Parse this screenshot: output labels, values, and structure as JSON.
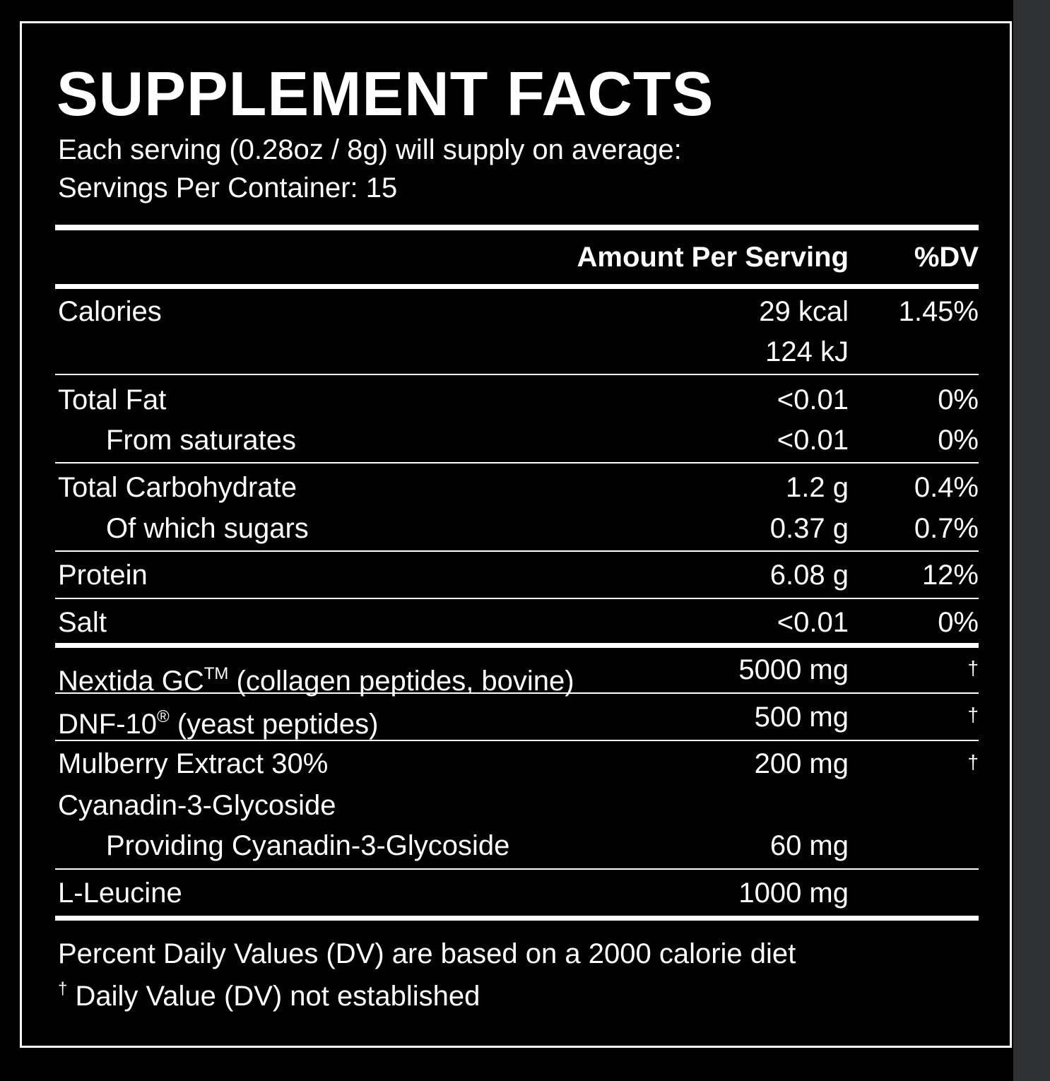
{
  "title": "SUPPLEMENT FACTS",
  "serving_line": "Each serving (0.28oz / 8g) will supply on average:",
  "servings_line": "Servings Per Container: 15",
  "headers": {
    "amount": "Amount Per Serving",
    "dv": "%DV"
  },
  "rows": {
    "calories": {
      "label": "Calories",
      "amount": "29 kcal",
      "amount2": "124 kJ",
      "dv": "1.45%"
    },
    "total_fat": {
      "label": "Total Fat",
      "amount": "<0.01",
      "dv": "0%"
    },
    "saturates": {
      "label": "From saturates",
      "amount": "<0.01",
      "dv": "0%"
    },
    "carb": {
      "label": "Total Carbohydrate",
      "amount": "1.2 g",
      "dv": "0.4%"
    },
    "sugars": {
      "label": "Of which sugars",
      "amount": "0.37 g",
      "dv": "0.7%"
    },
    "protein": {
      "label": "Protein",
      "amount": "6.08 g",
      "dv": "12%"
    },
    "salt": {
      "label": "Salt",
      "amount": "<0.01",
      "dv": "0%"
    },
    "nextida": {
      "label_main": "Nextida GC",
      "label_mark": "TM",
      "label_rest": " (collagen peptides, bovine)",
      "amount": "5000 mg",
      "dv": "†"
    },
    "dnf": {
      "label_main": "DNF-10",
      "label_mark": "®",
      "label_rest": " (yeast peptides)",
      "amount": "500 mg",
      "dv": "†"
    },
    "mulberry": {
      "label": "Mulberry Extract 30%",
      "label2": "Cyanadin-3-Glycoside",
      "amount": "200 mg",
      "dv": "†"
    },
    "providing": {
      "label": "Providing Cyanadin-3-Glycoside",
      "amount": "60 mg"
    },
    "leucine": {
      "label": "L-Leucine",
      "amount": "1000 mg"
    }
  },
  "footnotes": {
    "dv_note": "Percent Daily Values (DV) are based on a 2000 calorie diet",
    "dagger_symbol": "†",
    "dagger_note": " Daily Value (DV) not established"
  }
}
